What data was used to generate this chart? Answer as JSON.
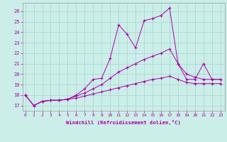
{
  "xlabel": "Windchill (Refroidissement éolien,°C)",
  "x_ticks": [
    0,
    1,
    2,
    3,
    4,
    5,
    6,
    7,
    8,
    9,
    10,
    11,
    12,
    13,
    14,
    15,
    16,
    17,
    18,
    19,
    20,
    21,
    22,
    23
  ],
  "y_ticks": [
    17,
    18,
    19,
    20,
    21,
    22,
    23,
    24,
    25,
    26
  ],
  "ylim": [
    16.5,
    26.8
  ],
  "xlim": [
    -0.3,
    23.5
  ],
  "bg_color": "#cceee8",
  "grid_color": "#aad8d4",
  "line_color": "#aa00aa",
  "line1_y": [
    18.0,
    17.0,
    17.4,
    17.5,
    17.5,
    17.6,
    18.0,
    18.6,
    19.5,
    19.6,
    21.5,
    24.7,
    23.8,
    22.5,
    25.1,
    25.3,
    25.6,
    26.3,
    21.0,
    19.5,
    19.5,
    21.0,
    19.5,
    19.5
  ],
  "line2_y": [
    18.0,
    17.0,
    17.4,
    17.5,
    17.5,
    17.6,
    17.9,
    18.2,
    18.6,
    19.0,
    19.6,
    20.2,
    20.6,
    21.0,
    21.4,
    21.7,
    22.0,
    22.4,
    21.0,
    20.0,
    19.7,
    19.5,
    19.5,
    19.5
  ],
  "line3_y": [
    18.0,
    17.0,
    17.4,
    17.5,
    17.5,
    17.6,
    17.7,
    17.9,
    18.1,
    18.3,
    18.5,
    18.7,
    18.9,
    19.1,
    19.3,
    19.5,
    19.6,
    19.8,
    19.5,
    19.2,
    19.1,
    19.1,
    19.1,
    19.1
  ]
}
